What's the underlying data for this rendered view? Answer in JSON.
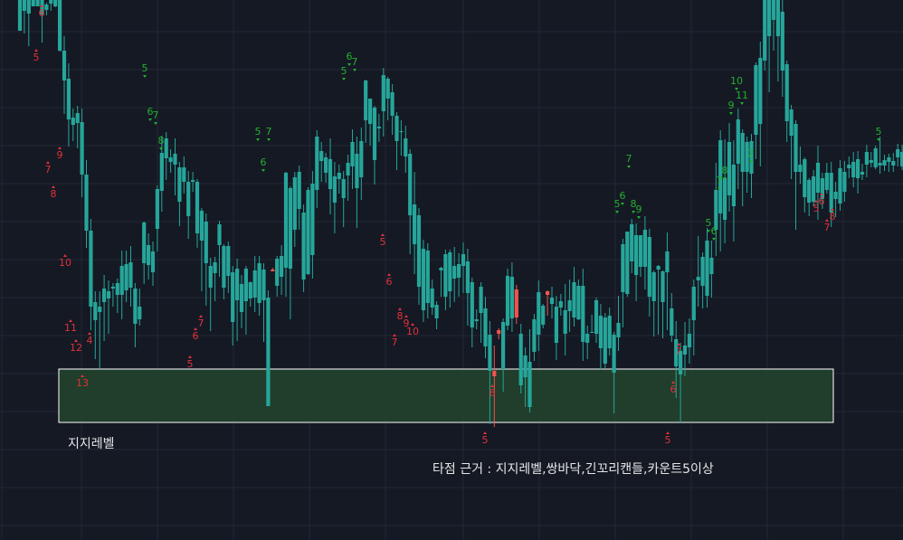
{
  "annotations": {
    "support_zone_label": "지지레벨",
    "entry_rationale": "타점 근거 : 지지레벨,쌍바닥,긴꼬리캔들,카운트5이상"
  },
  "colors": {
    "background": "#151924",
    "grid": "#232733",
    "up_candle": "#26a69a",
    "down_candle": "#ef5350",
    "count_up": "#22b02e",
    "count_down": "#e0323a",
    "zone_fill": "#22452d",
    "zone_border": "#ffffff"
  },
  "chart_data": {
    "type": "candlestick",
    "title": "",
    "xlabel": "",
    "ylabel": "",
    "ylim": [
      0,
      597
    ],
    "grid": true,
    "support_zone": {
      "low": 130,
      "high": 189
    },
    "candles": [
      [
        563,
        597,
        597,
        572
      ],
      [
        585,
        597,
        597,
        560
      ],
      [
        582,
        597,
        597,
        546
      ],
      [
        590,
        597,
        597,
        590
      ],
      [
        590,
        597,
        597,
        590
      ],
      [
        581,
        597,
        597,
        550
      ],
      [
        586,
        592,
        594,
        580
      ],
      [
        593,
        597,
        597,
        585
      ],
      [
        590,
        597,
        597,
        589
      ],
      [
        541,
        597,
        597,
        540
      ],
      [
        508,
        541,
        557,
        471
      ],
      [
        465,
        510,
        527,
        435
      ],
      [
        459,
        467,
        477,
        441
      ],
      [
        461,
        472,
        480,
        433
      ],
      [
        404,
        462,
        477,
        379
      ],
      [
        342,
        404,
        420,
        323
      ],
      [
        258,
        342,
        355,
        232
      ],
      [
        243,
        263,
        275,
        200
      ],
      [
        252,
        258,
        275,
        190
      ],
      [
        263,
        278,
        293,
        220
      ],
      [
        267,
        275,
        287,
        228
      ],
      [
        278,
        280,
        284,
        258
      ],
      [
        271,
        284,
        289,
        251
      ],
      [
        271,
        303,
        320,
        244
      ],
      [
        276,
        305,
        320,
        263
      ],
      [
        279,
        307,
        325,
        258
      ],
      [
        239,
        278,
        284,
        213
      ],
      [
        244,
        258,
        278,
        237
      ],
      [
        306,
        351,
        352,
        283
      ],
      [
        304,
        326,
        339,
        288
      ],
      [
        296,
        319,
        330,
        281
      ],
      [
        344,
        388,
        392,
        319
      ],
      [
        386,
        428,
        447,
        363
      ],
      [
        422,
        444,
        451,
        398
      ],
      [
        418,
        423,
        432,
        406
      ],
      [
        415,
        427,
        444,
        381
      ],
      [
        374,
        412,
        418,
        347
      ],
      [
        396,
        412,
        424,
        383
      ],
      [
        358,
        396,
        408,
        333
      ],
      [
        396,
        398,
        407,
        385
      ],
      [
        339,
        396,
        399,
        323
      ],
      [
        331,
        364,
        367,
        275
      ],
      [
        306,
        352,
        361,
        259
      ],
      [
        279,
        303,
        312,
        231
      ],
      [
        295,
        307,
        313,
        264
      ],
      [
        326,
        349,
        353,
        291
      ],
      [
        279,
        325,
        327,
        266
      ],
      [
        292,
        325,
        330,
        273
      ],
      [
        241,
        296,
        303,
        215
      ],
      [
        265,
        300,
        311,
        220
      ],
      [
        252,
        283,
        293,
        234
      ],
      [
        264,
        300,
        303,
        227
      ],
      [
        267,
        285,
        286,
        258
      ],
      [
        268,
        298,
        314,
        252
      ],
      [
        262,
        306,
        314,
        248
      ],
      [
        265,
        299,
        306,
        219
      ],
      [
        148,
        268,
        276,
        152
      ],
      [
        299,
        297,
        301,
        299
      ],
      [
        281,
        311,
        314,
        269
      ],
      [
        291,
        314,
        326,
        271
      ],
      [
        301,
        406,
        407,
        269
      ],
      [
        300,
        389,
        391,
        244
      ],
      [
        343,
        401,
        407,
        324
      ],
      [
        366,
        407,
        414,
        343
      ],
      [
        288,
        362,
        371,
        274
      ],
      [
        294,
        387,
        390,
        293
      ],
      [
        315,
        394,
        408,
        289
      ],
      [
        387,
        446,
        453,
        367
      ],
      [
        419,
        430,
        440,
        396
      ],
      [
        406,
        423,
        428,
        395
      ],
      [
        388,
        421,
        444,
        360
      ],
      [
        373,
        402,
        418,
        339
      ],
      [
        399,
        406,
        415,
        383
      ],
      [
        378,
        399,
        408,
        346
      ],
      [
        403,
        417,
        426,
        375
      ],
      [
        413,
        440,
        454,
        388
      ],
      [
        389,
        427,
        446,
        345
      ],
      [
        401,
        441,
        456,
        376
      ],
      [
        464,
        508,
        509,
        439
      ],
      [
        460,
        488,
        488,
        436
      ],
      [
        420,
        478,
        480,
        393
      ],
      [
        455,
        457,
        471,
        440
      ],
      [
        474,
        514,
        522,
        446
      ],
      [
        488,
        510,
        512,
        464
      ],
      [
        469,
        495,
        504,
        448
      ],
      [
        441,
        469,
        473,
        409
      ],
      [
        451,
        452,
        464,
        425
      ],
      [
        424,
        444,
        458,
        406
      ],
      [
        359,
        427,
        432,
        316
      ],
      [
        327,
        371,
        407,
        294
      ],
      [
        280,
        359,
        367,
        260
      ],
      [
        254,
        322,
        332,
        241
      ],
      [
        262,
        320,
        328,
        245
      ],
      [
        257,
        278,
        288,
        249
      ],
      [
        245,
        260,
        264,
        233
      ],
      [
        298,
        301,
        302,
        269
      ],
      [
        269,
        316,
        321,
        254
      ],
      [
        275,
        318,
        321,
        257
      ],
      [
        289,
        303,
        324,
        263
      ],
      [
        290,
        305,
        317,
        269
      ],
      [
        303,
        316,
        329,
        273
      ],
      [
        273,
        308,
        322,
        237
      ],
      [
        235,
        285,
        290,
        213
      ],
      [
        242,
        244,
        255,
        233
      ],
      [
        251,
        280,
        285,
        218
      ],
      [
        214,
        256,
        269,
        201
      ],
      [
        187,
        227,
        242,
        128
      ],
      [
        187,
        181,
        215,
        125
      ],
      [
        232,
        228,
        234,
        222
      ],
      [
        189,
        241,
        245,
        164
      ],
      [
        237,
        292,
        300,
        232
      ],
      [
        245,
        291,
        307,
        230
      ],
      [
        277,
        246,
        282,
        239
      ],
      [
        171,
        228,
        239,
        162
      ],
      [
        180,
        204,
        213,
        147
      ],
      [
        147,
        197,
        233,
        141
      ],
      [
        208,
        244,
        250,
        198
      ],
      [
        227,
        274,
        287,
        209
      ],
      [
        238,
        259,
        261,
        234
      ],
      [
        275,
        271,
        276,
        248
      ],
      [
        261,
        268,
        280,
        245
      ],
      [
        218,
        258,
        270,
        199
      ],
      [
        257,
        264,
        272,
        248
      ],
      [
        228,
        254,
        283,
        204
      ],
      [
        253,
        265,
        288,
        230
      ],
      [
        246,
        285,
        302,
        236
      ],
      [
        244,
        281,
        288,
        243
      ],
      [
        219,
        281,
        300,
        198
      ],
      [
        218,
        228,
        237,
        200
      ],
      [
        229,
        230,
        249,
        229
      ],
      [
        228,
        265,
        268,
        218
      ],
      [
        212,
        248,
        261,
        188
      ],
      [
        195,
        246,
        251,
        190
      ],
      [
        212,
        248,
        257,
        204
      ],
      [
        185,
        227,
        230,
        140
      ],
      [
        224,
        240,
        270,
        209
      ],
      [
        274,
        327,
        333,
        235
      ],
      [
        272,
        341,
        341,
        269
      ],
      [
        308,
        349,
        355,
        295
      ],
      [
        293,
        337,
        350,
        264
      ],
      [
        302,
        337,
        337,
        291
      ],
      [
        302,
        343,
        358,
        277
      ],
      [
        269,
        335,
        344,
        247
      ],
      [
        264,
        296,
        298,
        225
      ],
      [
        299,
        303,
        304,
        227
      ],
      [
        263,
        297,
        298,
        223
      ],
      [
        296,
        319,
        340,
        232
      ],
      [
        226,
        256,
        273,
        219
      ],
      [
        192,
        222,
        242,
        157
      ],
      [
        183,
        209,
        218,
        129
      ],
      [
        205,
        215,
        241,
        181
      ],
      [
        213,
        228,
        245,
        195
      ],
      [
        243,
        280,
        288,
        204
      ],
      [
        287,
        291,
        336,
        258
      ],
      [
        281,
        313,
        318,
        256
      ],
      [
        270,
        331,
        345,
        257
      ],
      [
        294,
        312,
        331,
        268
      ],
      [
        343,
        387,
        417,
        314
      ],
      [
        361,
        442,
        453,
        319
      ],
      [
        354,
        400,
        443,
        328
      ],
      [
        381,
        440,
        461,
        363
      ],
      [
        369,
        415,
        442,
        330
      ],
      [
        416,
        465,
        477,
        388
      ],
      [
        407,
        450,
        454,
        369
      ],
      [
        407,
        440,
        446,
        384
      ],
      [
        405,
        441,
        449,
        378
      ],
      [
        448,
        525,
        528,
        421
      ],
      [
        460,
        533,
        551,
        413
      ],
      [
        530,
        597,
        597,
        519
      ],
      [
        557,
        597,
        597,
        495
      ],
      [
        575,
        597,
        597,
        541
      ],
      [
        557,
        597,
        597,
        507
      ],
      [
        519,
        584,
        597,
        490
      ],
      [
        463,
        526,
        530,
        440
      ],
      [
        447,
        476,
        481,
        399
      ],
      [
        407,
        460,
        464,
        343
      ],
      [
        407,
        415,
        435,
        394
      ],
      [
        379,
        421,
        423,
        362
      ],
      [
        373,
        398,
        400,
        358
      ],
      [
        374,
        402,
        409,
        369
      ],
      [
        384,
        417,
        436,
        354
      ],
      [
        377,
        400,
        406,
        366
      ],
      [
        387,
        406,
        417,
        383
      ],
      [
        362,
        406,
        418,
        346
      ],
      [
        377,
        385,
        396,
        357
      ],
      [
        372,
        411,
        420,
        364
      ],
      [
        385,
        407,
        419,
        374
      ],
      [
        411,
        415,
        424,
        400
      ],
      [
        401,
        418,
        429,
        390
      ],
      [
        400,
        421,
        430,
        383
      ],
      [
        404,
        407,
        416,
        398
      ],
      [
        415,
        429,
        437,
        401
      ],
      [
        417,
        420,
        429,
        412
      ],
      [
        412,
        433,
        436,
        410
      ],
      [
        414,
        417,
        446,
        405
      ],
      [
        414,
        420,
        426,
        408
      ],
      [
        418,
        423,
        427,
        407
      ],
      [
        414,
        419,
        428,
        407
      ],
      [
        423,
        432,
        438,
        413
      ],
      [
        413,
        429,
        437,
        409
      ]
    ],
    "x_first": 22,
    "x_step": 4.9,
    "td_counts_up": [
      {
        "label": "5",
        "x": 160,
        "y": 522
      },
      {
        "label": "6",
        "x": 166,
        "y": 474
      },
      {
        "label": "7",
        "x": 172,
        "y": 470
      },
      {
        "label": "8",
        "x": 178,
        "y": 442
      },
      {
        "label": "5",
        "x": 285,
        "y": 452
      },
      {
        "label": "6",
        "x": 291,
        "y": 418
      },
      {
        "label": "7",
        "x": 297,
        "y": 452
      },
      {
        "label": "5",
        "x": 380,
        "y": 519
      },
      {
        "label": "6",
        "x": 386,
        "y": 535
      },
      {
        "label": "7",
        "x": 392,
        "y": 529
      },
      {
        "label": "5",
        "x": 682,
        "y": 372
      },
      {
        "label": "6",
        "x": 688,
        "y": 381
      },
      {
        "label": "7",
        "x": 695,
        "y": 422
      },
      {
        "label": "8",
        "x": 700,
        "y": 372
      },
      {
        "label": "9",
        "x": 706,
        "y": 366
      },
      {
        "label": "5",
        "x": 783,
        "y": 351
      },
      {
        "label": "6",
        "x": 789,
        "y": 342
      },
      {
        "label": "7",
        "x": 795,
        "y": 398
      },
      {
        "label": "8",
        "x": 801,
        "y": 409
      },
      {
        "label": "9",
        "x": 808,
        "y": 481
      },
      {
        "label": "10",
        "x": 814,
        "y": 508
      },
      {
        "label": "11",
        "x": 820,
        "y": 492
      },
      {
        "label": "2",
        "x": 830,
        "y": 428
      },
      {
        "label": "5",
        "x": 971,
        "y": 452
      }
    ],
    "td_counts_down": [
      {
        "label": "6",
        "x": 46,
        "y": 583
      },
      {
        "label": "5",
        "x": 40,
        "y": 534
      },
      {
        "label": "7",
        "x": 53,
        "y": 410
      },
      {
        "label": "9",
        "x": 66,
        "y": 426
      },
      {
        "label": "8",
        "x": 59,
        "y": 383
      },
      {
        "label": "10",
        "x": 72,
        "y": 307
      },
      {
        "label": "11",
        "x": 78,
        "y": 235
      },
      {
        "label": "12",
        "x": 84,
        "y": 213
      },
      {
        "label": "4",
        "x": 99,
        "y": 221
      },
      {
        "label": "13",
        "x": 91,
        "y": 174
      },
      {
        "label": "5",
        "x": 210,
        "y": 195
      },
      {
        "label": "6",
        "x": 216,
        "y": 226
      },
      {
        "label": "7",
        "x": 222,
        "y": 240
      },
      {
        "label": "5",
        "x": 423,
        "y": 330
      },
      {
        "label": "6",
        "x": 430,
        "y": 286
      },
      {
        "label": "7",
        "x": 436,
        "y": 219
      },
      {
        "label": "8",
        "x": 442,
        "y": 248
      },
      {
        "label": "9",
        "x": 449,
        "y": 240
      },
      {
        "label": "10",
        "x": 456,
        "y": 231
      },
      {
        "label": "6",
        "x": 544,
        "y": 163
      },
      {
        "label": "5",
        "x": 536,
        "y": 111
      },
      {
        "label": "5",
        "x": 738,
        "y": 111
      },
      {
        "label": "6",
        "x": 744,
        "y": 167
      },
      {
        "label": "7",
        "x": 750,
        "y": 209
      },
      {
        "label": "5",
        "x": 902,
        "y": 367
      },
      {
        "label": "6",
        "x": 908,
        "y": 375
      },
      {
        "label": "7",
        "x": 914,
        "y": 346
      },
      {
        "label": "8",
        "x": 920,
        "y": 358
      }
    ]
  }
}
